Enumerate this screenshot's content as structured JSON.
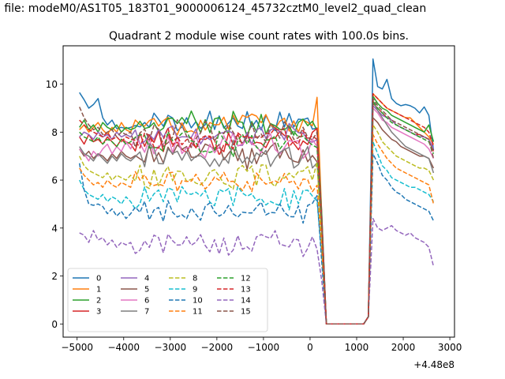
{
  "chart_data": {
    "type": "line",
    "suptitle": "n file: modeM0/AS1T05_183T01_9000006124_45732cztM0_level2_quad_clean",
    "title": "Quadrant 2 module wise count rates with 100.0s bins.",
    "xlabel": "",
    "ylabel": "",
    "x_offset_label": "+4.48e8",
    "xlim": [
      -5300,
      3100
    ],
    "ylim": [
      -0.55,
      11.6
    ],
    "xticks": [
      -5000,
      -4000,
      -3000,
      -2000,
      -1000,
      0,
      1000,
      2000,
      3000
    ],
    "xtick_labels": [
      "−5000",
      "−4000",
      "−3000",
      "−2000",
      "−1000",
      "0",
      "1000",
      "2000",
      "3000"
    ],
    "yticks": [
      0,
      2,
      4,
      6,
      8,
      10
    ],
    "ytick_labels": [
      "0",
      "2",
      "4",
      "6",
      "8",
      "10"
    ],
    "x_start": -4950,
    "x_step": 100,
    "legend": {
      "placement": "lower-left",
      "ncol": 4
    },
    "series": [
      {
        "name": "0",
        "color": "#1f77b4",
        "dash": "solid",
        "level": 8.45,
        "pre": [
          9.65,
          9.35,
          9.0,
          9.15,
          9.4,
          8.6,
          8.3,
          8.5,
          8.15,
          8.2,
          8.15,
          8.2
        ],
        "post": [
          11.05,
          9.9,
          9.8,
          10.2,
          9.4,
          9.2,
          9.1,
          9.15,
          9.1,
          9.0,
          8.8,
          9.05,
          8.7,
          7.25
        ]
      },
      {
        "name": "1",
        "color": "#ff7f0e",
        "dash": "solid",
        "level": 8.35,
        "pre": [
          8.1,
          8.3,
          8.0,
          8.2,
          8.4,
          8.1,
          7.9,
          8.2,
          8.0,
          8.4,
          8.1,
          8.0
        ],
        "post": [
          9.6,
          9.4,
          9.2,
          9.0,
          8.9,
          8.8,
          8.7,
          8.6,
          8.6,
          8.4,
          8.2,
          8.0,
          7.8,
          7.5
        ]
      },
      {
        "name": "2",
        "color": "#2ca02c",
        "dash": "solid",
        "level": 8.3,
        "pre": [
          8.2,
          8.5,
          8.1,
          8.3,
          8.0,
          8.4,
          8.2,
          8.1,
          8.3,
          8.0,
          8.2,
          8.1
        ],
        "post": [
          9.5,
          9.2,
          9.0,
          8.9,
          8.7,
          8.6,
          8.5,
          8.4,
          8.3,
          8.2,
          8.1,
          8.0,
          8.3,
          7.6
        ]
      },
      {
        "name": "3",
        "color": "#d62728",
        "dash": "solid",
        "level": 7.6,
        "pre": [
          7.8,
          7.5,
          7.9,
          7.6,
          7.7,
          7.5,
          7.8,
          7.6,
          7.4,
          7.7,
          7.6,
          7.5
        ],
        "post": [
          9.2,
          9.0,
          8.8,
          8.6,
          8.5,
          8.3,
          8.2,
          8.1,
          8.0,
          7.9,
          7.9,
          7.8,
          7.7,
          7.2
        ]
      },
      {
        "name": "4",
        "color": "#9467bd",
        "dash": "solid",
        "level": 7.85,
        "pre": [
          7.8,
          8.0,
          7.9,
          7.7,
          8.0,
          7.8,
          7.9,
          7.7,
          8.0,
          7.8,
          7.9,
          7.8
        ],
        "post": [
          9.1,
          8.9,
          8.7,
          8.6,
          8.5,
          8.3,
          8.2,
          8.1,
          8.0,
          7.9,
          7.8,
          7.8,
          7.7,
          7.3
        ]
      },
      {
        "name": "5",
        "color": "#8c564b",
        "dash": "solid",
        "level": 7.05,
        "pre": [
          7.3,
          7.0,
          7.2,
          6.9,
          7.1,
          7.0,
          6.8,
          7.1,
          6.9,
          7.2,
          7.0,
          6.9
        ],
        "post": [
          8.6,
          8.4,
          8.1,
          7.9,
          7.7,
          7.6,
          7.4,
          7.3,
          7.2,
          7.1,
          7.0,
          7.0,
          6.9,
          6.5
        ]
      },
      {
        "name": "6",
        "color": "#e377c2",
        "dash": "solid",
        "level": 7.5,
        "pre": [
          7.3,
          7.1,
          6.8,
          7.2,
          7.0,
          7.3,
          7.5,
          7.1,
          7.4,
          7.2,
          7.6,
          7.3
        ],
        "post": [
          9.0,
          8.8,
          8.5,
          8.4,
          8.2,
          8.1,
          8.0,
          7.9,
          7.8,
          7.7,
          7.6,
          7.5,
          7.3,
          6.9
        ]
      },
      {
        "name": "7",
        "color": "#7f7f7f",
        "dash": "solid",
        "level": 6.95,
        "pre": [
          7.4,
          7.1,
          7.0,
          6.8,
          7.1,
          6.9,
          6.7,
          7.0,
          6.8,
          7.1,
          6.9,
          6.8
        ],
        "post": [
          9.3,
          8.9,
          8.6,
          8.3,
          8.0,
          7.8,
          7.6,
          7.4,
          7.3,
          7.2,
          7.1,
          7.0,
          6.9,
          6.3
        ]
      },
      {
        "name": "8",
        "color": "#bcbd22",
        "dash": "dashed",
        "level": 6.2,
        "pre": [
          7.0,
          6.6,
          6.4,
          6.3,
          6.2,
          6.1,
          6.3,
          6.0,
          6.2,
          6.1,
          6.0,
          6.2
        ],
        "post": [
          8.3,
          8.0,
          7.6,
          7.4,
          7.2,
          7.0,
          6.9,
          6.8,
          6.7,
          6.6,
          6.5,
          6.5,
          6.4,
          6.0
        ]
      },
      {
        "name": "9",
        "color": "#17becf",
        "dash": "dashed",
        "level": 5.3,
        "pre": [
          6.0,
          5.6,
          5.4,
          5.3,
          5.2,
          5.4,
          5.1,
          5.3,
          5.2,
          5.0,
          5.3,
          5.1
        ],
        "post": [
          7.6,
          7.1,
          6.6,
          6.4,
          6.1,
          6.0,
          5.9,
          5.8,
          5.7,
          5.7,
          5.6,
          5.5,
          5.4,
          5.1
        ]
      },
      {
        "name": "10",
        "color": "#1f77b4",
        "dash": "dashed",
        "level": 4.75,
        "pre": [
          6.7,
          5.6,
          5.0,
          4.95,
          5.0,
          4.9,
          4.6,
          4.8,
          4.5,
          4.7,
          4.4,
          4.6
        ],
        "post": [
          7.1,
          6.7,
          6.2,
          6.0,
          5.7,
          5.5,
          5.4,
          5.2,
          5.1,
          5.0,
          4.9,
          4.8,
          4.7,
          4.3
        ]
      },
      {
        "name": "11",
        "color": "#ff7f0e",
        "dash": "dashed",
        "level": 5.9,
        "pre": [
          6.5,
          6.2,
          6.0,
          5.8,
          5.9,
          5.7,
          6.0,
          5.8,
          5.7,
          5.9,
          5.8,
          5.7
        ],
        "post": [
          7.9,
          7.5,
          7.2,
          6.9,
          6.7,
          6.5,
          6.4,
          6.3,
          6.2,
          6.1,
          6.0,
          5.9,
          5.8,
          5.0
        ]
      },
      {
        "name": "12",
        "color": "#2ca02c",
        "dash": "dashed",
        "level": 7.6,
        "pre": [
          8.0,
          7.8,
          7.7,
          7.6,
          7.8,
          7.5,
          7.7,
          7.6,
          7.4,
          7.7,
          7.5,
          7.6
        ],
        "post": [
          9.3,
          9.0,
          8.8,
          8.6,
          8.4,
          8.3,
          8.2,
          8.1,
          8.0,
          7.9,
          7.8,
          7.7,
          7.6,
          7.1
        ]
      },
      {
        "name": "13",
        "color": "#d62728",
        "dash": "dashed",
        "level": 7.75,
        "pre": [
          8.5,
          8.3,
          8.1,
          8.0,
          7.9,
          7.8,
          8.0,
          7.7,
          7.8,
          7.6,
          7.8,
          7.7
        ],
        "post": [
          9.6,
          9.4,
          9.2,
          9.0,
          8.9,
          8.8,
          8.7,
          8.6,
          8.5,
          8.4,
          8.3,
          8.2,
          8.0,
          7.4
        ]
      },
      {
        "name": "14",
        "color": "#9467bd",
        "dash": "dashed",
        "level": 3.3,
        "pre": [
          3.8,
          3.7,
          3.4,
          3.9,
          3.5,
          3.6,
          3.3,
          3.5,
          3.2,
          3.4,
          3.3,
          3.4
        ],
        "post": [
          4.4,
          4.0,
          3.9,
          4.0,
          4.1,
          3.9,
          3.8,
          3.7,
          3.8,
          3.6,
          3.5,
          3.4,
          3.2,
          2.4
        ]
      },
      {
        "name": "15",
        "color": "#8c564b",
        "dash": "dashed",
        "level": 8.0,
        "pre": [
          9.05,
          8.6,
          8.3,
          8.1,
          8.2,
          7.9,
          8.0,
          8.1,
          7.8,
          8.0,
          7.9,
          8.0
        ],
        "post": [
          9.4,
          9.1,
          8.9,
          8.7,
          8.5,
          8.4,
          8.3,
          8.2,
          8.1,
          8.0,
          7.9,
          7.8,
          7.7,
          6.9
        ]
      }
    ]
  }
}
